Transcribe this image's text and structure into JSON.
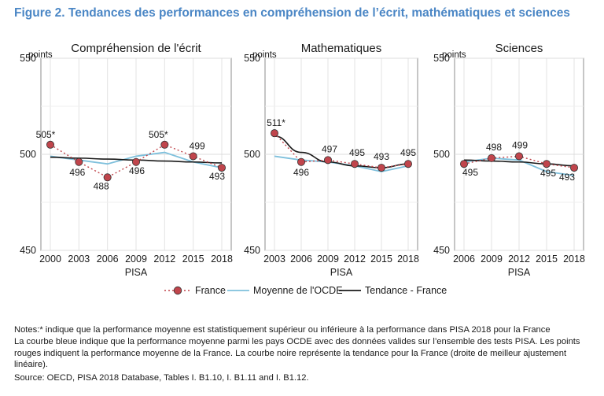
{
  "figure_title": "Figure 2. Tendances des performances en compréhension de l’écrit, mathématiques et sciences",
  "colors": {
    "france": "#c0454c",
    "oecd": "#7ec0dc",
    "trend": "#1a1a1a",
    "title": "#4a86c5"
  },
  "chart_data": [
    {
      "type": "line",
      "title": "Compréhension de l'écrit",
      "ylabel": "points",
      "xlabel": "PISA",
      "ylim": [
        450,
        550
      ],
      "yticks": [
        450,
        500,
        550
      ],
      "x": [
        2000,
        2003,
        2006,
        2009,
        2012,
        2015,
        2018
      ],
      "grid": true,
      "series": [
        {
          "name": "France",
          "values": [
            505,
            496,
            488,
            496,
            505,
            499,
            493
          ],
          "labels": [
            "505*",
            "496",
            "488",
            "496",
            "505*",
            "499",
            "493"
          ]
        },
        {
          "name": "Moyenne de l'OCDE",
          "values": [
            499,
            497,
            495,
            499,
            501,
            496,
            493
          ]
        },
        {
          "name": "Tendance - France",
          "values": [
            498.5,
            498,
            497.5,
            497,
            496.5,
            496,
            495.5
          ]
        }
      ]
    },
    {
      "type": "line",
      "title": "Mathematiques",
      "ylabel": "points",
      "xlabel": "PISA",
      "ylim": [
        450,
        550
      ],
      "yticks": [
        450,
        500,
        550
      ],
      "x": [
        2003,
        2006,
        2009,
        2012,
        2015,
        2018
      ],
      "grid": true,
      "series": [
        {
          "name": "France",
          "values": [
            511,
            496,
            497,
            495,
            493,
            495
          ],
          "labels": [
            "511*",
            "496",
            "497",
            "495",
            "493",
            "495"
          ]
        },
        {
          "name": "Moyenne de l'OCDE",
          "values": [
            499,
            497,
            496,
            494,
            491,
            494
          ]
        },
        {
          "name": "Tendance - France",
          "values": [
            509.5,
            501,
            496,
            494,
            493,
            495
          ]
        }
      ]
    },
    {
      "type": "line",
      "title": "Sciences",
      "ylabel": "points",
      "xlabel": "PISA",
      "ylim": [
        450,
        550
      ],
      "yticks": [
        450,
        500,
        550
      ],
      "x": [
        2006,
        2009,
        2012,
        2015,
        2018
      ],
      "grid": true,
      "series": [
        {
          "name": "France",
          "values": [
            495,
            498,
            499,
            495,
            493
          ],
          "labels": [
            "495",
            "498",
            "499",
            "495",
            "493"
          ]
        },
        {
          "name": "Moyenne de l'OCDE",
          "values": [
            496,
            498,
            497,
            491,
            489
          ]
        },
        {
          "name": "Tendance - France",
          "values": [
            497,
            496.5,
            496,
            495,
            494
          ]
        }
      ]
    }
  ],
  "legend": {
    "france": "France",
    "oecd": "Moyenne de l'OCDE",
    "trend": "Tendance - France"
  },
  "notes": {
    "line1": "Notes:* indique que la performance moyenne est statistiquement supérieur ou inférieure à la performance dans PISA 2018 pour la France",
    "line2": "La courbe bleue indique que la performance moyenne parmi les pays OCDE avec des données valides sur l’ensemble des tests PISA. Les points rouges indiquent la performance moyenne de la France. La courbe noire représente la tendance pour la France (droite de meilleur ajustement linéaire).",
    "source": "Source: OECD, PISA 2018 Database, Tables I. B1.10, I. B1.11 and I. B1.12."
  }
}
